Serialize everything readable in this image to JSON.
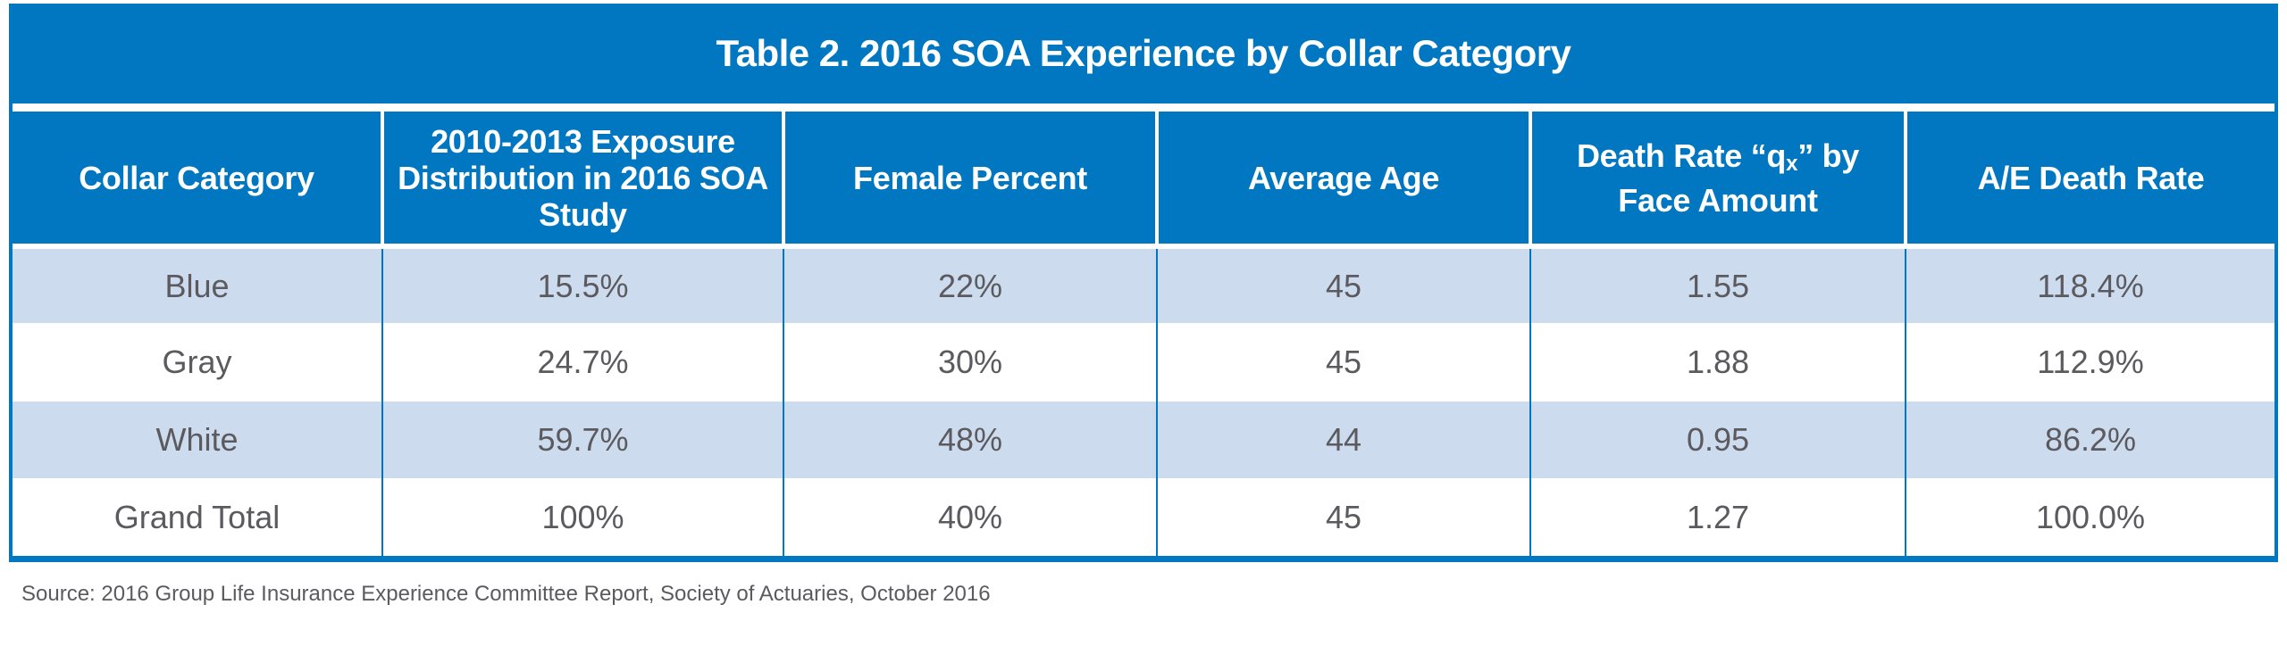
{
  "title": "Table 2.  2016 SOA Experience by Collar Category",
  "colors": {
    "header_blue": "#0077c0",
    "shaded_row": "#cddbef",
    "text_gray": "#5b5b5f"
  },
  "columns": [
    {
      "label": "Collar Category"
    },
    {
      "label": "2010-2013 Exposure Distribution in 2016 SOA Study"
    },
    {
      "label": "Female Percent"
    },
    {
      "label": "Average Age"
    },
    {
      "label_prefix": "Death Rate “q",
      "label_sub": "x",
      "label_suffix": "” by Face Amount"
    },
    {
      "label": "A/E Death Rate"
    }
  ],
  "rows": [
    {
      "category": "Blue",
      "exposure": "15.5%",
      "female": "22%",
      "age": "45",
      "death_rate": "1.55",
      "ae": "118.4%"
    },
    {
      "category": "Gray",
      "exposure": "24.7%",
      "female": "30%",
      "age": "45",
      "death_rate": "1.88",
      "ae": "112.9%"
    },
    {
      "category": "White",
      "exposure": "59.7%",
      "female": "48%",
      "age": "44",
      "death_rate": "0.95",
      "ae": "86.2%"
    },
    {
      "category": "Grand Total",
      "exposure": "100%",
      "female": "40%",
      "age": "45",
      "death_rate": "1.27",
      "ae": "100.0%"
    }
  ],
  "source": "Source: 2016 Group Life Insurance Experience Committee Report, Society of Actuaries, October 2016"
}
